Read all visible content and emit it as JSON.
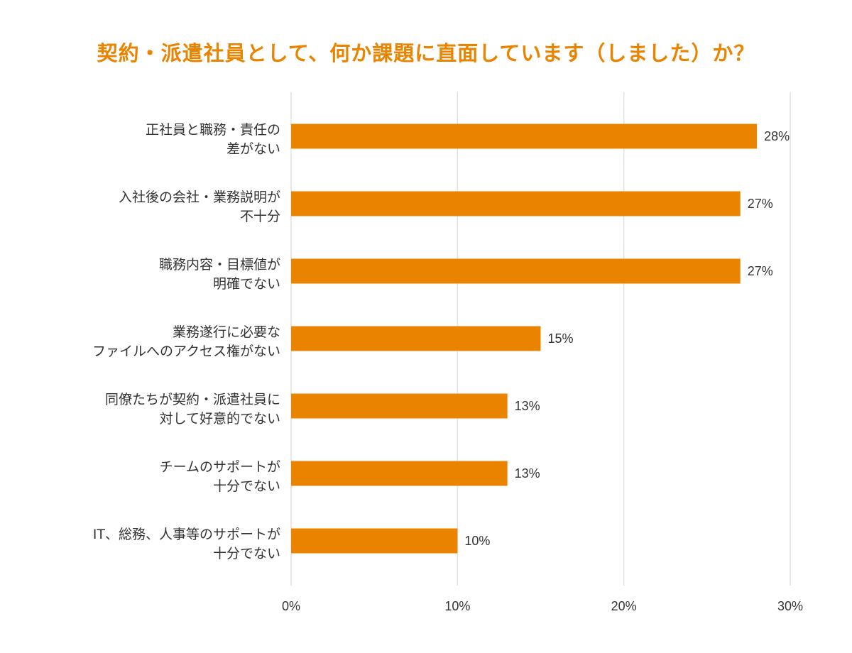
{
  "chart_data": {
    "type": "bar",
    "orientation": "horizontal",
    "title": "契約・派遣社員として、何か課題に直面しています（しました）か？",
    "categories": [
      [
        "正社員と職務・責任の",
        "差がない"
      ],
      [
        "入社後の会社・業務説明が",
        "不十分"
      ],
      [
        "職務内容・目標値が",
        "明確でない"
      ],
      [
        "業務遂行に必要な",
        "ファイルへのアクセス権がない"
      ],
      [
        "同僚たちが契約・派遣社員に",
        "対して好意的でない"
      ],
      [
        "チームのサポートが",
        "十分でない"
      ],
      [
        "IT、総務、人事等のサポートが",
        "十分でない"
      ]
    ],
    "values": [
      28,
      27,
      27,
      15,
      13,
      13,
      10
    ],
    "value_labels": [
      "28%",
      "27%",
      "27%",
      "15%",
      "13%",
      "13%",
      "10%"
    ],
    "xlim": [
      0,
      30
    ],
    "x_ticks": [
      0,
      10,
      20,
      30
    ],
    "x_tick_labels": [
      "0%",
      "10%",
      "20%",
      "30%"
    ],
    "grid": true,
    "bar_color": "#EA8400",
    "title_color": "#EA8400",
    "grid_color": "#E0E0E0"
  }
}
